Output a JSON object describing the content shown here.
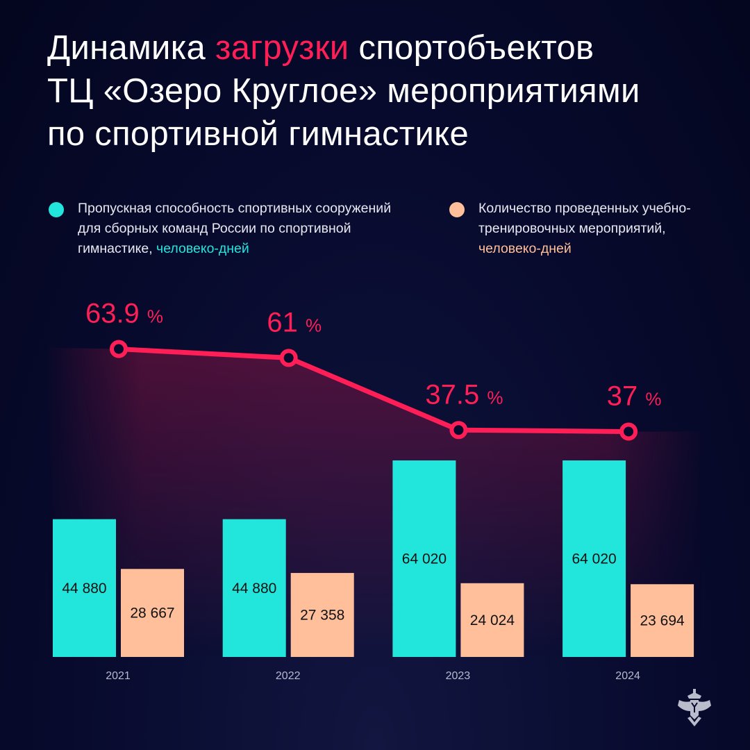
{
  "title": {
    "part1": "Динамика ",
    "accent": "загрузки",
    "part2": " спортобъектов",
    "line2": "ТЦ «Озеро Круглое» мероприятиями",
    "line3": "по спортивной гимнастике"
  },
  "legend": [
    {
      "text": "Пропускная способность спортивных сооружений для сборных команд России по спортивной гимнастике, ",
      "unit": "человеко-дней",
      "color": "#22e6dc"
    },
    {
      "text": "Количество проведенных учебно-тренировочных мероприятий, ",
      "unit": "человеко-дней",
      "color": "#ffbf9a"
    }
  ],
  "chart_data": {
    "type": "bar+line",
    "categories": [
      "2021",
      "2022",
      "2023",
      "2024"
    ],
    "series": [
      {
        "name": "Пропускная способность спортивных сооружений для сборных команд России по спортивной гимнастике, человеко-дней",
        "type": "bar",
        "color": "#22e6dc",
        "values": [
          44880,
          44880,
          64020,
          64020
        ],
        "labels": [
          "44 880",
          "44 880",
          "64 020",
          "64 020"
        ]
      },
      {
        "name": "Количество проведенных учебно-тренировочных мероприятий, человеко-дней",
        "type": "bar",
        "color": "#ffbf9a",
        "values": [
          28667,
          27358,
          24024,
          23694
        ],
        "labels": [
          "28 667",
          "27 358",
          "24 024",
          "23 694"
        ]
      },
      {
        "type": "line",
        "color": "#ff1e56",
        "unit": "%",
        "values": [
          63.9,
          61,
          37.5,
          37
        ],
        "labels": [
          "63.9",
          "61",
          "37.5",
          "37"
        ]
      }
    ]
  }
}
